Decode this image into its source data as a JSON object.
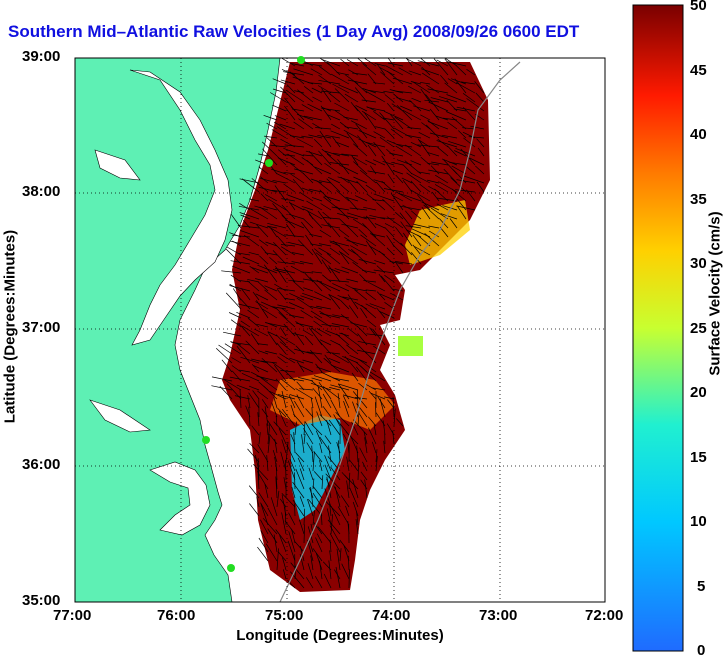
{
  "title": "Southern Mid–Atlantic Raw Velocities (1 Day Avg) 2008/09/26 0600 EDT",
  "axes": {
    "xlabel": "Longitude (Degrees:Minutes)",
    "ylabel": "Latitude (Degrees:Minutes)",
    "xticks": [
      "77:00",
      "76:00",
      "75:00",
      "74:00",
      "73:00",
      "72:00"
    ],
    "yticks": [
      "39:00",
      "38:00",
      "37:00",
      "36:00",
      "35:00"
    ]
  },
  "colorbar": {
    "label": "Surface Velocity (cm/s)",
    "ticks": [
      "50",
      "45",
      "40",
      "35",
      "30",
      "25",
      "20",
      "15",
      "10",
      "5",
      "0"
    ],
    "min": 0,
    "max": 50
  },
  "colors": {
    "land": "#5ef0b4",
    "title": "#1010e0",
    "station": "#22dd22"
  }
}
